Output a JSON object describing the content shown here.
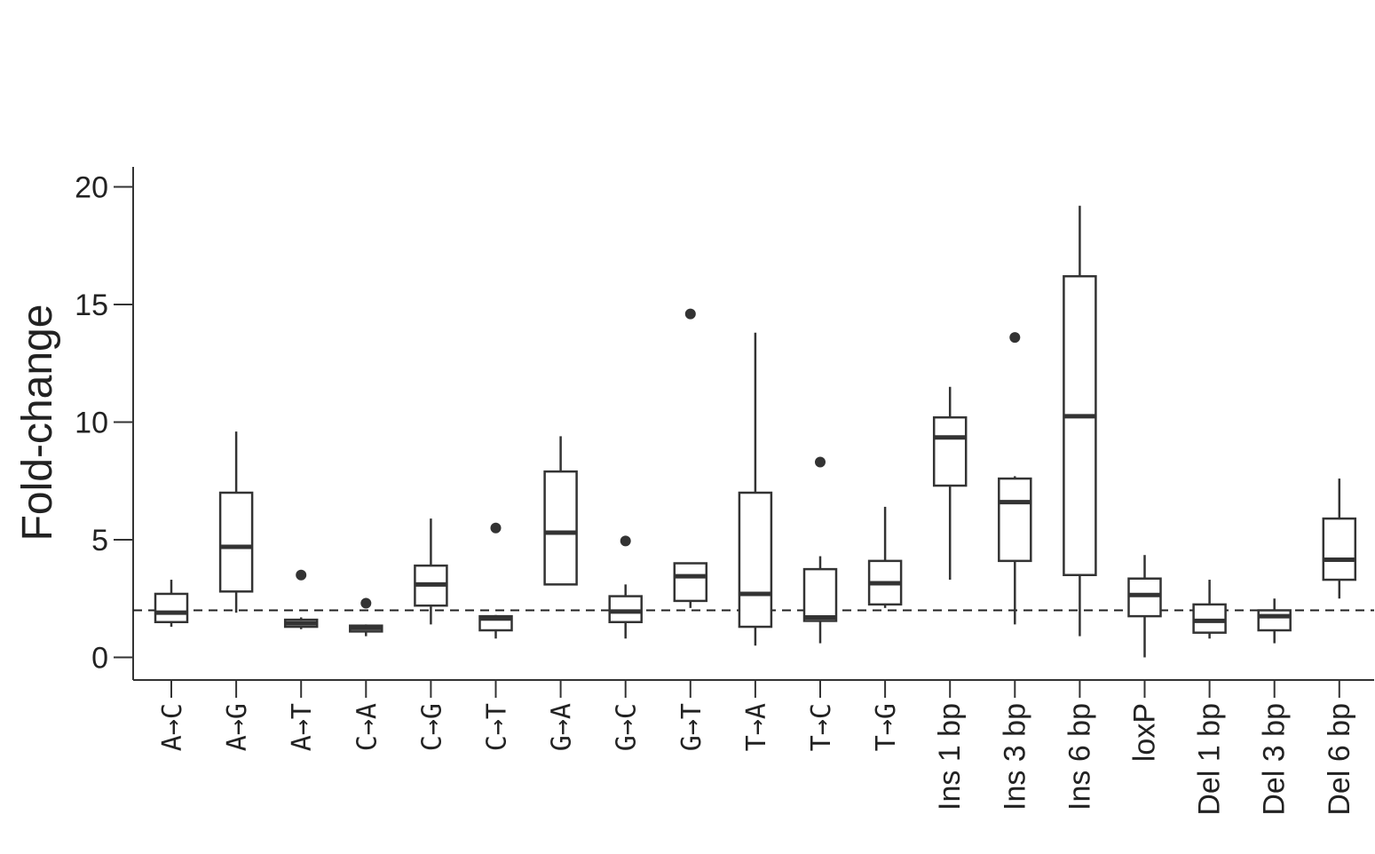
{
  "chart_data": {
    "type": "box",
    "title": "",
    "xlabel": "",
    "ylabel": "Fold-change",
    "ylim": [
      -1,
      21
    ],
    "yticks": [
      0,
      5,
      10,
      15,
      20
    ],
    "reference_line": 2,
    "categories": [
      "A→C",
      "A→G",
      "A→T",
      "C→A",
      "C→G",
      "C→T",
      "G→A",
      "G→C",
      "G→T",
      "T→A",
      "T→C",
      "T→G",
      "Ins 1 bp",
      "Ins 3 bp",
      "Ins 6 bp",
      "loxP",
      "Del 1 bp",
      "Del 3 bp",
      "Del 6 bp"
    ],
    "boxes": [
      {
        "min": 1.3,
        "q1": 1.5,
        "median": 1.9,
        "q3": 2.7,
        "max": 3.3,
        "outliers": []
      },
      {
        "min": 1.9,
        "q1": 2.8,
        "median": 4.7,
        "q3": 7.0,
        "max": 9.6,
        "outliers": []
      },
      {
        "min": 1.2,
        "q1": 1.3,
        "median": 1.45,
        "q3": 1.6,
        "max": 1.7,
        "outliers": [
          3.5
        ]
      },
      {
        "min": 0.9,
        "q1": 1.1,
        "median": 1.25,
        "q3": 1.35,
        "max": 1.4,
        "outliers": [
          2.3
        ]
      },
      {
        "min": 1.4,
        "q1": 2.2,
        "median": 3.1,
        "q3": 3.9,
        "max": 5.9,
        "outliers": []
      },
      {
        "min": 0.8,
        "q1": 1.15,
        "median": 1.65,
        "q3": 1.75,
        "max": 1.8,
        "outliers": [
          5.5
        ]
      },
      {
        "min": 3.1,
        "q1": 3.1,
        "median": 5.3,
        "q3": 7.9,
        "max": 9.4,
        "outliers": []
      },
      {
        "min": 0.8,
        "q1": 1.5,
        "median": 1.95,
        "q3": 2.6,
        "max": 3.1,
        "outliers": [
          4.95
        ]
      },
      {
        "min": 2.1,
        "q1": 2.4,
        "median": 3.45,
        "q3": 4.0,
        "max": 4.0,
        "outliers": [
          14.6
        ]
      },
      {
        "min": 0.5,
        "q1": 1.3,
        "median": 2.7,
        "q3": 7.0,
        "max": 13.8,
        "outliers": []
      },
      {
        "min": 0.6,
        "q1": 1.55,
        "median": 1.7,
        "q3": 3.75,
        "max": 4.3,
        "outliers": [
          8.3
        ]
      },
      {
        "min": 2.1,
        "q1": 2.25,
        "median": 3.15,
        "q3": 4.1,
        "max": 6.4,
        "outliers": []
      },
      {
        "min": 3.3,
        "q1": 7.3,
        "median": 9.35,
        "q3": 10.2,
        "max": 11.5,
        "outliers": []
      },
      {
        "min": 1.4,
        "q1": 4.1,
        "median": 6.6,
        "q3": 7.6,
        "max": 7.7,
        "outliers": [
          13.6
        ]
      },
      {
        "min": 0.9,
        "q1": 3.5,
        "median": 10.25,
        "q3": 16.2,
        "max": 19.2,
        "outliers": []
      },
      {
        "min": 0.0,
        "q1": 1.75,
        "median": 2.65,
        "q3": 3.35,
        "max": 4.35,
        "outliers": []
      },
      {
        "min": 0.8,
        "q1": 1.05,
        "median": 1.55,
        "q3": 2.25,
        "max": 3.3,
        "outliers": []
      },
      {
        "min": 0.6,
        "q1": 1.15,
        "median": 1.75,
        "q3": 2.0,
        "max": 2.5,
        "outliers": []
      },
      {
        "min": 2.5,
        "q1": 3.3,
        "median": 4.15,
        "q3": 5.9,
        "max": 7.6,
        "outliers": []
      }
    ]
  }
}
